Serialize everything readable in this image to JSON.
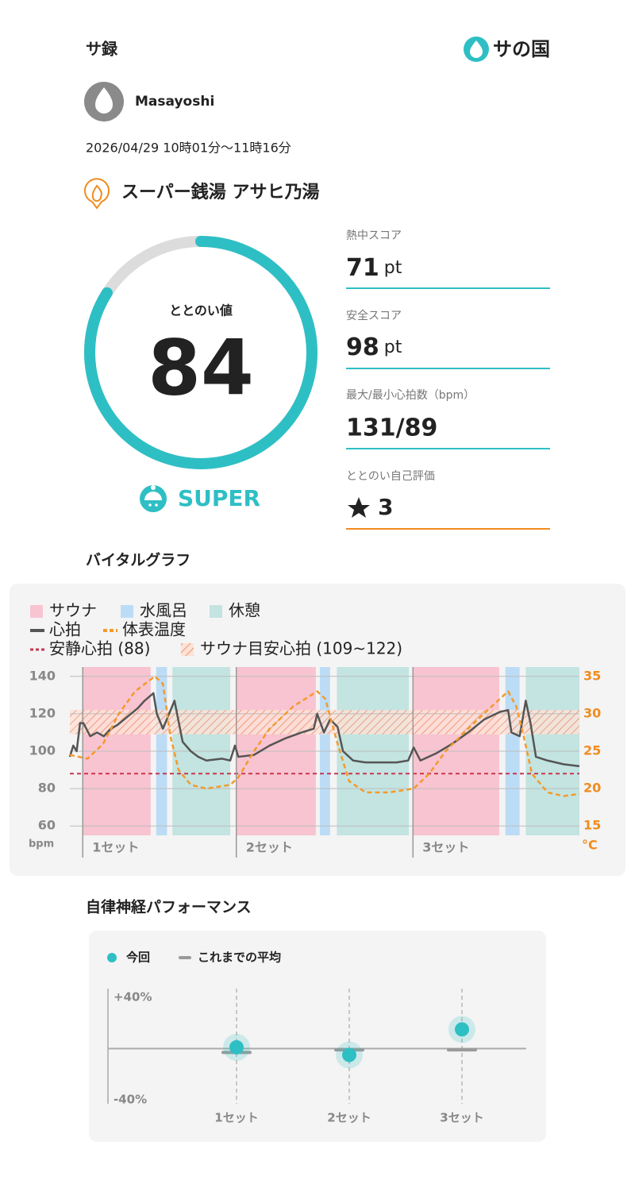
{
  "header": {
    "title": "サ録",
    "brand": "サの国"
  },
  "user": {
    "name": "Masayoshi"
  },
  "session": {
    "datetime": "2026/04/29 10時01分〜11時16分",
    "facility": "スーパー銭湯 アサヒ乃湯"
  },
  "score": {
    "label": "ととのい値",
    "value": 84,
    "lim": [
      0,
      100
    ],
    "rank": "SUPER"
  },
  "stats": [
    {
      "label": "熱中スコア",
      "value": 71,
      "unit": "pt"
    },
    {
      "label": "安全スコア",
      "value": 98,
      "unit": "pt"
    },
    {
      "label": "最大/最小心拍数（bpm）",
      "value": "131/89"
    },
    {
      "label": "ととのい自己評価",
      "value": 3
    }
  ],
  "vital_chart": {
    "type": "line",
    "title": "バイタルグラフ",
    "zones": [
      {
        "name": "サウナ",
        "color": "#f8c4d1",
        "intervals": [
          [
            1.9,
            11.9
          ],
          [
            24.5,
            36.2
          ],
          [
            50.5,
            63.2
          ]
        ]
      },
      {
        "name": "水風呂",
        "color": "#bcdcf6",
        "intervals": [
          [
            12.7,
            14.3
          ],
          [
            36.8,
            38.3
          ],
          [
            64.1,
            66.2
          ]
        ]
      },
      {
        "name": "休憩",
        "color": "#c3e4e1",
        "intervals": [
          [
            15.1,
            23.6
          ],
          [
            39.3,
            49.9
          ],
          [
            67.1,
            75
          ]
        ]
      }
    ],
    "series": [
      {
        "name": "心拍",
        "color": "#555555",
        "x": [
          0,
          0.5,
          1,
          1.5,
          2,
          3,
          4,
          5,
          6,
          7,
          8,
          9,
          10,
          11,
          12.3,
          12.8,
          13.7,
          15.4,
          16.6,
          17.8,
          18.9,
          20.1,
          22.4,
          23.6,
          24.3,
          24.8,
          27.1,
          29.4,
          31.8,
          34.1,
          35.9,
          36.4,
          37.4,
          38.3,
          39.4,
          40.2,
          41.7,
          43.5,
          45.8,
          48.1,
          49.8,
          50.6,
          51.6,
          54,
          56.3,
          58.6,
          61,
          63.3,
          64.5,
          65,
          66.2,
          67.1,
          67.8,
          68.6,
          70.3,
          72.7,
          75
        ],
        "values": [
          97,
          103,
          100,
          115,
          115,
          108,
          110,
          108,
          112,
          114,
          117,
          120,
          123,
          127,
          131,
          120,
          112,
          127,
          105,
          100,
          97,
          95,
          96,
          95,
          103,
          97,
          98,
          103,
          107,
          110,
          112,
          120,
          110,
          117,
          113,
          100,
          95,
          94,
          94,
          94,
          95,
          102,
          95,
          99,
          104,
          110,
          117,
          121,
          122,
          110,
          108,
          127,
          115,
          97,
          95,
          93,
          92
        ]
      },
      {
        "name": "体表温度",
        "color": "#f39a2b",
        "axis": "y2",
        "dash": true,
        "x": [
          0,
          2.6,
          4.9,
          7.2,
          9.6,
          12.5,
          13.7,
          14.8,
          16,
          17.8,
          20.1,
          23.6,
          24.8,
          27.1,
          29.4,
          32.9,
          36.4,
          37.6,
          39.4,
          41.1,
          43.5,
          47,
          50.6,
          52.9,
          55.3,
          58.6,
          62.1,
          64.5,
          65.7,
          66.8,
          68,
          70.3,
          72.7,
          75
        ],
        "values": [
          24.5,
          24,
          26,
          30,
          33,
          35,
          34,
          27,
          22.5,
          20.5,
          20,
          20.5,
          21.5,
          25,
          28,
          31,
          33,
          32,
          26,
          21,
          19.5,
          19.5,
          20,
          22,
          25,
          28,
          31,
          33,
          31,
          27,
          22,
          19.5,
          19,
          19.3
        ]
      }
    ],
    "reference_line": {
      "name": "安静心拍 (88)",
      "value": 88,
      "color": "#c8374f"
    },
    "target_band": {
      "name": "サウナ目安心拍 (109~122)",
      "range": [
        109,
        122
      ],
      "color": "#f0906a"
    },
    "xlim": [
      0,
      75
    ],
    "ylim": [
      55,
      145
    ],
    "yticks": [
      60,
      80,
      100,
      120,
      140
    ],
    "ylabel": "bpm",
    "y2lim": [
      13.75,
      36.25
    ],
    "y2ticks": [
      15,
      20,
      25,
      30,
      35
    ],
    "y2label": "°C",
    "grid": true,
    "sets": [
      {
        "label": "1セット",
        "x": 1.9
      },
      {
        "label": "2セット",
        "x": 24.5
      },
      {
        "label": "3セット",
        "x": 50.5
      }
    ]
  },
  "autonomic_chart": {
    "type": "scatter",
    "title": "自律神経パフォーマンス",
    "categories": [
      "1セット",
      "2セット",
      "3セット"
    ],
    "series": [
      {
        "name": "今回",
        "color": "#2ebfc4",
        "values": [
          1,
          -5,
          15
        ]
      },
      {
        "name": "これまでの平均",
        "color": "#9a9a9a",
        "values": [
          -3,
          -1,
          -1
        ]
      }
    ],
    "ylim": [
      -40,
      40
    ],
    "yticks": [
      {
        "value": 40,
        "label": "+40%"
      },
      {
        "value": -40,
        "label": "-40%"
      }
    ]
  }
}
